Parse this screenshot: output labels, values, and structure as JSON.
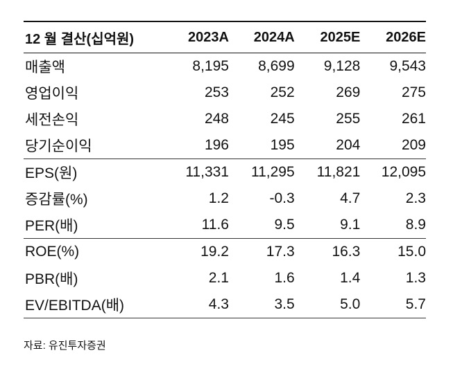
{
  "header": {
    "label": "12 월 결산(십억원)",
    "years": [
      "2023A",
      "2024A",
      "2025E",
      "2026E"
    ]
  },
  "groups": [
    {
      "rows": [
        {
          "label": "매출액",
          "values": [
            "8,195",
            "8,699",
            "9,128",
            "9,543"
          ]
        },
        {
          "label": "영업이익",
          "values": [
            "253",
            "252",
            "269",
            "275"
          ]
        },
        {
          "label": "세전손익",
          "values": [
            "248",
            "245",
            "255",
            "261"
          ]
        },
        {
          "label": "당기순이익",
          "values": [
            "196",
            "195",
            "204",
            "209"
          ]
        }
      ]
    },
    {
      "rows": [
        {
          "label": "EPS(원)",
          "values": [
            "11,331",
            "11,295",
            "11,821",
            "12,095"
          ]
        },
        {
          "label": "증감률(%)",
          "values": [
            "1.2",
            "-0.3",
            "4.7",
            "2.3"
          ]
        },
        {
          "label": "PER(배)",
          "values": [
            "11.6",
            "9.5",
            "9.1",
            "8.9"
          ]
        }
      ]
    },
    {
      "rows": [
        {
          "label": "ROE(%)",
          "values": [
            "19.2",
            "17.3",
            "16.3",
            "15.0"
          ]
        },
        {
          "label": "PBR(배)",
          "values": [
            "2.1",
            "1.6",
            "1.4",
            "1.3"
          ]
        },
        {
          "label": "EV/EBITDA(배)",
          "values": [
            "4.3",
            "3.5",
            "5.0",
            "5.7"
          ]
        }
      ]
    }
  ],
  "source": "자료: 유진투자증권"
}
